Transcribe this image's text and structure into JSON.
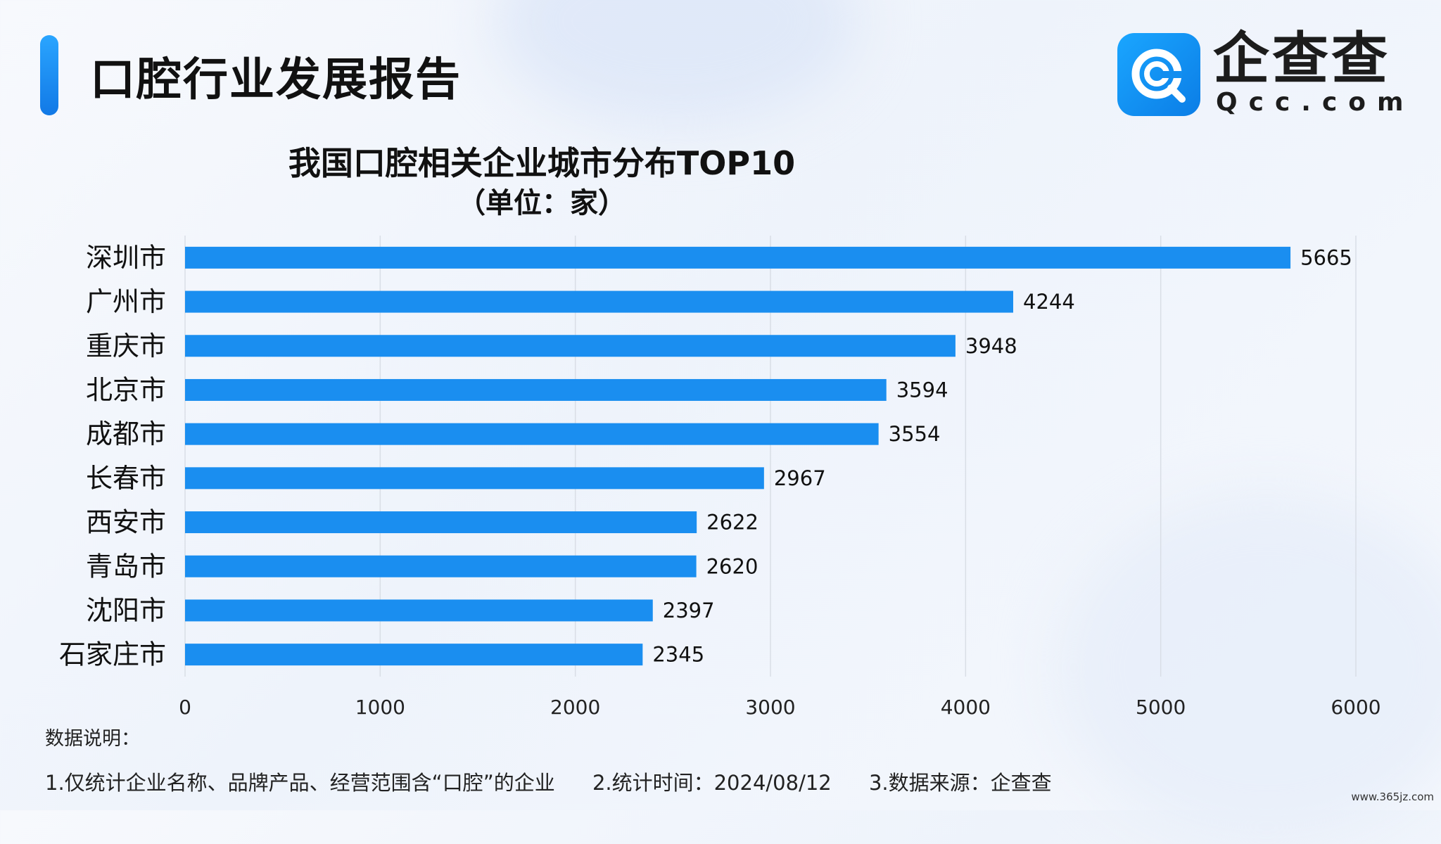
{
  "header": {
    "report_title": "口腔行业发展报告",
    "brand_name_cn": "企查查",
    "brand_name_en": "Qcc.com"
  },
  "chart_data": {
    "type": "bar",
    "orientation": "horizontal",
    "title": "我国口腔相关企业城市分布TOP10",
    "subtitle": "（单位：家）",
    "categories": [
      "深圳市",
      "广州市",
      "重庆市",
      "北京市",
      "成都市",
      "长春市",
      "西安市",
      "青岛市",
      "沈阳市",
      "石家庄市"
    ],
    "values": [
      5665,
      4244,
      3948,
      3594,
      3554,
      2967,
      2622,
      2620,
      2397,
      2345
    ],
    "xlim": [
      0,
      6000
    ],
    "xticks": [
      0,
      1000,
      2000,
      3000,
      4000,
      5000,
      6000
    ],
    "grid": true,
    "bar_color": "#1a8ef0"
  },
  "notes": {
    "label": "数据说明：",
    "items": [
      "1.仅统计企业名称、品牌产品、经营范围含“口腔”的企业",
      "2.统计时间：2024/08/12",
      "3.数据来源：企查查"
    ]
  },
  "watermark": "www.365jz.com"
}
